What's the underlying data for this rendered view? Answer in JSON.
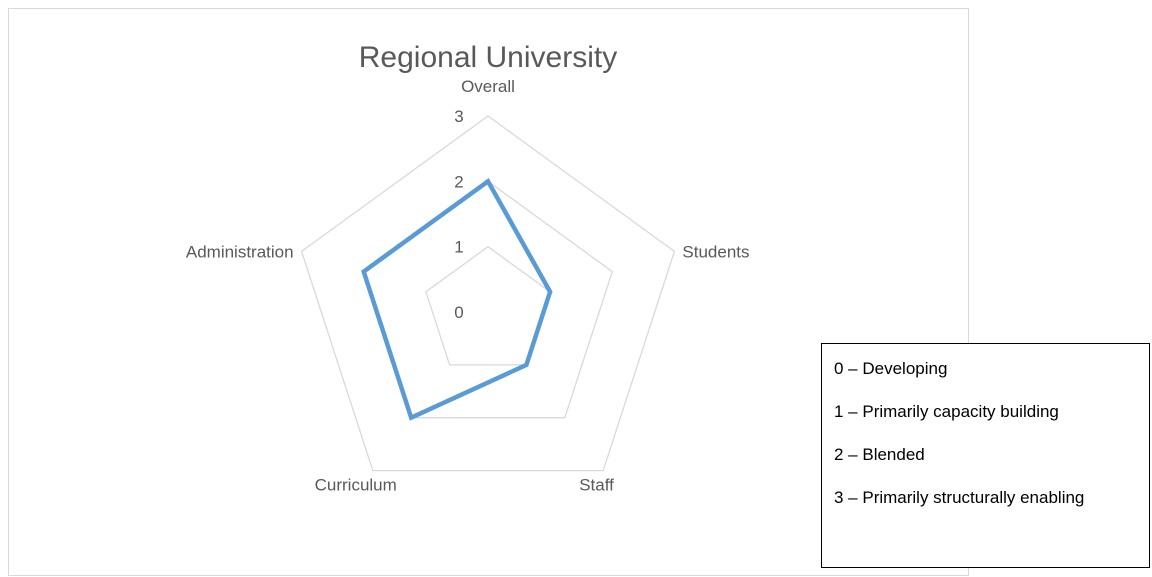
{
  "chart_data": {
    "type": "radar",
    "title": "Regional University",
    "categories": [
      "Overall",
      "Students",
      "Staff",
      "Curriculum",
      "Administration"
    ],
    "ticks": [
      "0",
      "1",
      "2",
      "3"
    ],
    "rlim": [
      0,
      3
    ],
    "series": [
      {
        "values": [
          2,
          1,
          1,
          2,
          2
        ],
        "color": "#5b9bd5"
      }
    ],
    "grid": true,
    "grid_color": "#d9d9d9"
  },
  "legend_box": {
    "items": [
      "0 – Developing",
      "1 – Primarily capacity building",
      "2 – Blended",
      "3 – Primarily structurally enabling"
    ]
  }
}
